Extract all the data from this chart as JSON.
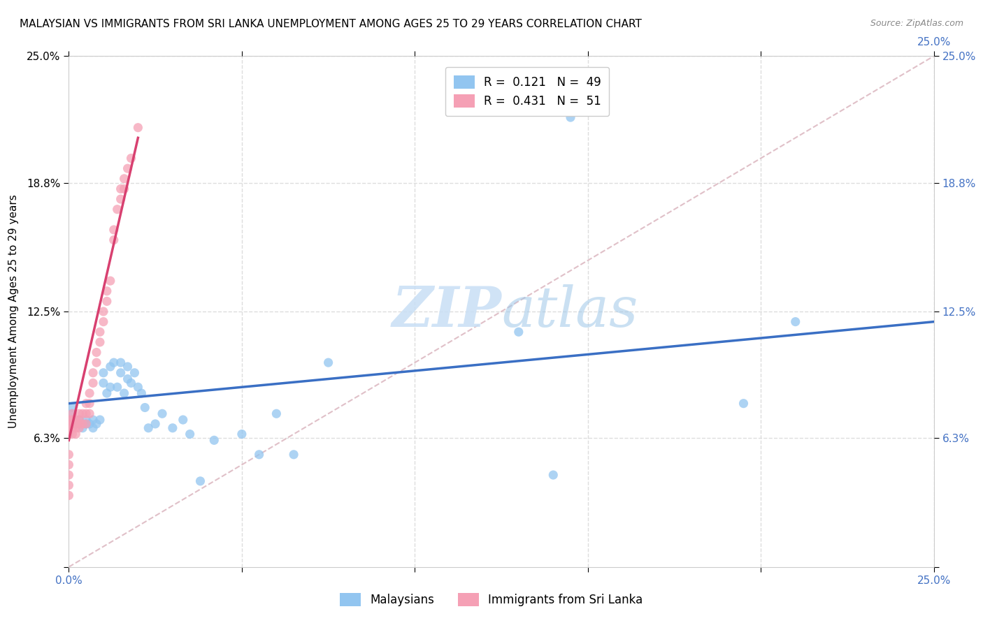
{
  "title": "MALAYSIAN VS IMMIGRANTS FROM SRI LANKA UNEMPLOYMENT AMONG AGES 25 TO 29 YEARS CORRELATION CHART",
  "source": "Source: ZipAtlas.com",
  "ylabel": "Unemployment Among Ages 25 to 29 years",
  "xlim": [
    0.0,
    0.25
  ],
  "ylim": [
    0.0,
    0.25
  ],
  "xtick_positions": [
    0.0,
    0.05,
    0.1,
    0.15,
    0.2,
    0.25
  ],
  "ytick_positions": [
    0.0,
    0.063,
    0.125,
    0.188,
    0.25
  ],
  "xticklabels_bottom": [
    "0.0%",
    "",
    "",
    "",
    "",
    "25.0%"
  ],
  "yticklabels_left": [
    "",
    "6.3%",
    "12.5%",
    "18.8%",
    "25.0%"
  ],
  "yticklabels_right": [
    "",
    "6.3%",
    "12.5%",
    "18.8%",
    "25.0%"
  ],
  "malaysians_x": [
    0.001,
    0.001,
    0.001,
    0.001,
    0.002,
    0.003,
    0.004,
    0.005,
    0.005,
    0.006,
    0.007,
    0.007,
    0.008,
    0.009,
    0.01,
    0.01,
    0.011,
    0.012,
    0.012,
    0.013,
    0.014,
    0.015,
    0.015,
    0.016,
    0.017,
    0.017,
    0.018,
    0.019,
    0.02,
    0.021,
    0.022,
    0.023,
    0.025,
    0.027,
    0.03,
    0.033,
    0.035,
    0.038,
    0.042,
    0.05,
    0.055,
    0.06,
    0.065,
    0.075,
    0.13,
    0.14,
    0.145,
    0.195,
    0.21
  ],
  "malaysians_y": [
    0.07,
    0.072,
    0.075,
    0.078,
    0.07,
    0.072,
    0.068,
    0.07,
    0.072,
    0.07,
    0.068,
    0.072,
    0.07,
    0.072,
    0.09,
    0.095,
    0.085,
    0.098,
    0.088,
    0.1,
    0.088,
    0.095,
    0.1,
    0.085,
    0.098,
    0.092,
    0.09,
    0.095,
    0.088,
    0.085,
    0.078,
    0.068,
    0.07,
    0.075,
    0.068,
    0.072,
    0.065,
    0.042,
    0.062,
    0.065,
    0.055,
    0.075,
    0.055,
    0.1,
    0.115,
    0.045,
    0.22,
    0.08,
    0.12
  ],
  "srilanka_x": [
    0.0,
    0.0,
    0.0,
    0.0,
    0.0,
    0.0,
    0.0,
    0.0,
    0.0,
    0.001,
    0.001,
    0.001,
    0.001,
    0.001,
    0.002,
    0.002,
    0.002,
    0.002,
    0.003,
    0.003,
    0.003,
    0.003,
    0.004,
    0.004,
    0.005,
    0.005,
    0.005,
    0.006,
    0.006,
    0.006,
    0.007,
    0.007,
    0.008,
    0.008,
    0.009,
    0.009,
    0.01,
    0.01,
    0.011,
    0.011,
    0.012,
    0.013,
    0.013,
    0.014,
    0.015,
    0.015,
    0.016,
    0.016,
    0.017,
    0.018,
    0.02
  ],
  "srilanka_y": [
    0.065,
    0.068,
    0.07,
    0.072,
    0.055,
    0.05,
    0.045,
    0.04,
    0.035,
    0.065,
    0.068,
    0.07,
    0.072,
    0.075,
    0.065,
    0.068,
    0.07,
    0.072,
    0.068,
    0.07,
    0.072,
    0.075,
    0.07,
    0.075,
    0.07,
    0.075,
    0.08,
    0.075,
    0.08,
    0.085,
    0.09,
    0.095,
    0.1,
    0.105,
    0.11,
    0.115,
    0.12,
    0.125,
    0.13,
    0.135,
    0.14,
    0.16,
    0.165,
    0.175,
    0.18,
    0.185,
    0.185,
    0.19,
    0.195,
    0.2,
    0.215
  ],
  "blue_line_x": [
    0.0,
    0.25
  ],
  "blue_line_y": [
    0.08,
    0.12
  ],
  "pink_line_x": [
    0.0,
    0.02
  ],
  "pink_line_y": [
    0.062,
    0.21
  ],
  "diag_line_x": [
    0.0,
    0.25
  ],
  "diag_line_y": [
    0.0,
    0.25
  ],
  "watermark_zip": "ZIP",
  "watermark_atlas": "atlas",
  "marker_size": 90,
  "blue_color": "#92C5F0",
  "pink_color": "#F5A0B5",
  "blue_line_color": "#3A6FC4",
  "pink_line_color": "#D84070",
  "diag_line_color": "#E0C0C8",
  "grid_color": "#DDDDDD",
  "title_fontsize": 11,
  "axis_label_fontsize": 11,
  "tick_label_fontsize": 11,
  "right_tick_color": "#4472C4",
  "bottom_tick_color": "#4472C4",
  "background_color": "#FFFFFF"
}
